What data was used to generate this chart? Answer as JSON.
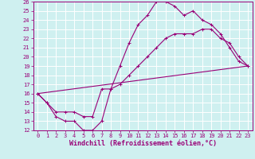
{
  "xlabel": "Windchill (Refroidissement éolien,°C)",
  "bg_color": "#cff0f0",
  "grid_color": "#ffffff",
  "line_color": "#990077",
  "xlim": [
    -0.5,
    23.5
  ],
  "ylim": [
    12,
    26
  ],
  "xticks": [
    0,
    1,
    2,
    3,
    4,
    5,
    6,
    7,
    8,
    9,
    10,
    11,
    12,
    13,
    14,
    15,
    16,
    17,
    18,
    19,
    20,
    21,
    22,
    23
  ],
  "yticks": [
    12,
    13,
    14,
    15,
    16,
    17,
    18,
    19,
    20,
    21,
    22,
    23,
    24,
    25,
    26
  ],
  "curve1_x": [
    0,
    1,
    2,
    3,
    4,
    5,
    6,
    7,
    8,
    9,
    10,
    11,
    12,
    13,
    14,
    15,
    16,
    17,
    18,
    19,
    20,
    21,
    22,
    23
  ],
  "curve1_y": [
    16,
    15,
    13.5,
    13,
    13,
    12,
    12,
    13,
    16.5,
    19,
    21.5,
    23.5,
    24.5,
    26,
    26,
    25.5,
    24.5,
    25,
    24,
    23.5,
    22.5,
    21,
    19.5,
    19
  ],
  "curve2_x": [
    0,
    1,
    2,
    3,
    4,
    5,
    6,
    7,
    8,
    9,
    10,
    11,
    12,
    13,
    14,
    15,
    16,
    17,
    18,
    19,
    20,
    21,
    22,
    23
  ],
  "curve2_y": [
    16,
    15,
    14,
    14,
    14,
    13.5,
    13.5,
    16.5,
    16.5,
    17,
    18,
    19,
    20,
    21,
    22,
    22.5,
    22.5,
    22.5,
    23,
    23,
    22,
    21.5,
    20,
    19
  ],
  "curve3_x": [
    0,
    23
  ],
  "curve3_y": [
    16,
    19
  ],
  "font_size_label": 6,
  "font_size_tick": 5
}
